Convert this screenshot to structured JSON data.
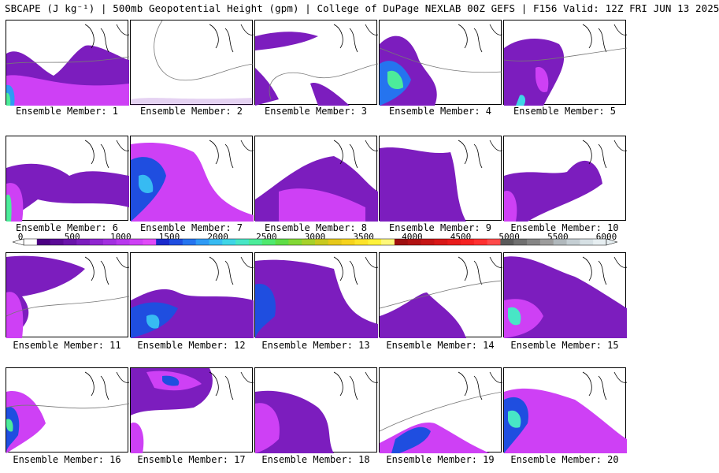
{
  "title": "SBCAPE (J kg⁻¹) | 500mb Geopotential Height (gpm) | College of DuPage NEXLAB 00Z GEFS | F156 Valid: 12Z FRI JUN 13 2025",
  "colorbar": {
    "ticks": [
      "0",
      "500",
      "1000",
      "1500",
      "2000",
      "2500",
      "3000",
      "3500",
      "4000",
      "4500",
      "5000",
      "5500",
      "6000"
    ],
    "colors": [
      "#ffffff",
      "#4b0082",
      "#5a0a96",
      "#6a14aa",
      "#7c1dbe",
      "#8f26d0",
      "#a22fe0",
      "#b838ee",
      "#ce40f5",
      "#e04af8",
      "#1a2acc",
      "#1f4ee0",
      "#2574ef",
      "#2e9af5",
      "#37bbf2",
      "#3fd5e6",
      "#48e6c6",
      "#4cec9a",
      "#4fe96e",
      "#5edd45",
      "#82d835",
      "#a6d12a",
      "#c8c91f",
      "#e6c81a",
      "#f6d31c",
      "#fde32a",
      "#fff23a",
      "#fff87a",
      "#9e0f0f",
      "#b11212",
      "#c51515",
      "#d81818",
      "#e81c1c",
      "#f52222",
      "#ff3030",
      "#ff4a4a",
      "#5a5a5a",
      "#707070",
      "#868686",
      "#9c9c9c",
      "#b0b8bc",
      "#c4ced3",
      "#d6e0e4",
      "#e6eef1"
    ],
    "range": [
      0,
      6000
    ]
  },
  "panels": [
    {
      "label": "Ensemble Member: 1"
    },
    {
      "label": "Ensemble Member: 2"
    },
    {
      "label": "Ensemble Member: 3"
    },
    {
      "label": "Ensemble Member: 4"
    },
    {
      "label": "Ensemble Member: 5"
    },
    {
      "label": "Ensemble Member: 6"
    },
    {
      "label": "Ensemble Member: 7"
    },
    {
      "label": "Ensemble Member: 8"
    },
    {
      "label": "Ensemble Member: 9"
    },
    {
      "label": "Ensemble Member: 10"
    },
    {
      "label": "Ensemble Member: 11"
    },
    {
      "label": "Ensemble Member: 12"
    },
    {
      "label": "Ensemble Member: 13"
    },
    {
      "label": "Ensemble Member: 14"
    },
    {
      "label": "Ensemble Member: 15"
    },
    {
      "label": "Ensemble Member: 16"
    },
    {
      "label": "Ensemble Member: 17"
    },
    {
      "label": "Ensemble Member: 18"
    },
    {
      "label": "Ensemble Member: 19"
    },
    {
      "label": "Ensemble Member: 20"
    }
  ]
}
